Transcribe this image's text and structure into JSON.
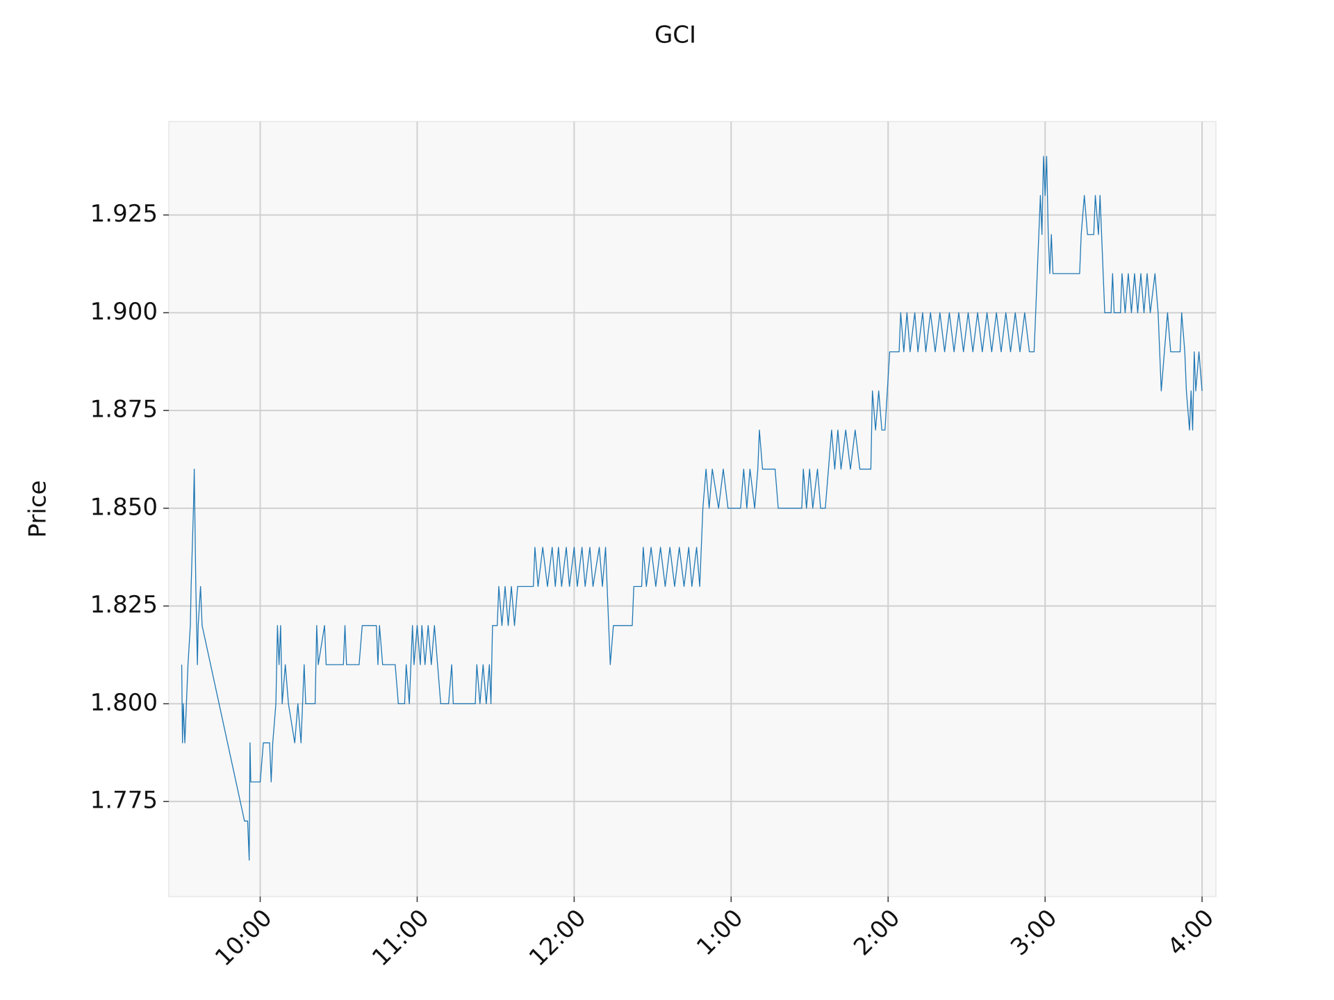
{
  "chart_data": {
    "type": "line",
    "title": "GCI",
    "y_label": "Price",
    "x": [
      9.5,
      9.505,
      9.51,
      9.52,
      9.54,
      9.555,
      9.56,
      9.575,
      9.58,
      9.59,
      9.6,
      9.605,
      9.62,
      9.63,
      9.9,
      9.92,
      9.93,
      9.935,
      9.94,
      10,
      10.02,
      10.06,
      10.07,
      10.08,
      10.1,
      10.11,
      10.12,
      10.13,
      10.14,
      10.16,
      10.18,
      10.22,
      10.24,
      10.26,
      10.28,
      10.29,
      10.35,
      10.36,
      10.37,
      10.41,
      10.42,
      10.53,
      10.54,
      10.55,
      10.63,
      10.65,
      10.74,
      10.75,
      10.76,
      10.78,
      10.86,
      10.88,
      10.92,
      10.93,
      10.95,
      10.97,
      10.98,
      11,
      11.02,
      11.03,
      11.05,
      11.07,
      11.09,
      11.11,
      11.13,
      11.15,
      11.2,
      11.22,
      11.23,
      11.37,
      11.38,
      11.4,
      11.42,
      11.44,
      11.46,
      11.47,
      11.48,
      11.51,
      11.52,
      11.54,
      11.56,
      11.58,
      11.6,
      11.62,
      11.64,
      11.74,
      11.75,
      11.77,
      11.8,
      11.83,
      11.86,
      11.88,
      11.9,
      11.92,
      11.95,
      11.97,
      12,
      12.02,
      12.05,
      12.07,
      12.1,
      12.12,
      12.16,
      12.18,
      12.2,
      12.21,
      12.23,
      12.25,
      12.37,
      12.38,
      12.43,
      12.44,
      12.46,
      12.49,
      12.52,
      12.55,
      12.58,
      12.61,
      12.64,
      12.67,
      12.7,
      12.73,
      12.75,
      12.78,
      12.8,
      12.82,
      12.84,
      12.86,
      12.88,
      12.92,
      12.95,
      12.98,
      13.06,
      13.08,
      13.1,
      13.12,
      13.15,
      13.17,
      13.18,
      13.2,
      13.28,
      13.3,
      13.45,
      13.46,
      13.48,
      13.5,
      13.52,
      13.55,
      13.57,
      13.6,
      13.62,
      13.64,
      13.66,
      13.68,
      13.7,
      13.73,
      13.76,
      13.79,
      13.82,
      13.89,
      13.9,
      13.92,
      13.94,
      13.96,
      13.98,
      14.01,
      14.07,
      14.08,
      14.1,
      14.12,
      14.14,
      14.17,
      14.19,
      14.22,
      14.24,
      14.27,
      14.3,
      14.33,
      14.36,
      14.39,
      14.42,
      14.45,
      14.48,
      14.51,
      14.54,
      14.57,
      14.6,
      14.63,
      14.66,
      14.69,
      14.72,
      14.75,
      14.78,
      14.81,
      14.84,
      14.87,
      14.9,
      14.93,
      14.94,
      14.95,
      14.97,
      14.98,
      14.99,
      15,
      15.01,
      15.02,
      15.03,
      15.04,
      15.05,
      15.22,
      15.23,
      15.25,
      15.27,
      15.31,
      15.32,
      15.34,
      15.35,
      15.37,
      15.38,
      15.42,
      15.43,
      15.44,
      15.48,
      15.49,
      15.51,
      15.53,
      15.55,
      15.57,
      15.59,
      15.61,
      15.63,
      15.65,
      15.67,
      15.7,
      15.72,
      15.74,
      15.76,
      15.78,
      15.8,
      15.86,
      15.87,
      15.89,
      15.9,
      15.92,
      15.93,
      15.94,
      15.95,
      15.96,
      15.98,
      16
    ],
    "series": [
      {
        "color": "#1f77b4",
        "values": [
          1.81,
          1.79,
          1.8,
          1.79,
          1.81,
          1.82,
          1.83,
          1.85,
          1.86,
          1.83,
          1.81,
          1.82,
          1.83,
          1.82,
          1.77,
          1.77,
          1.76,
          1.79,
          1.78,
          1.78,
          1.79,
          1.79,
          1.78,
          1.79,
          1.8,
          1.82,
          1.81,
          1.82,
          1.8,
          1.81,
          1.8,
          1.79,
          1.8,
          1.79,
          1.81,
          1.8,
          1.8,
          1.82,
          1.81,
          1.82,
          1.81,
          1.81,
          1.82,
          1.81,
          1.81,
          1.82,
          1.82,
          1.81,
          1.82,
          1.81,
          1.81,
          1.8,
          1.8,
          1.81,
          1.8,
          1.82,
          1.81,
          1.82,
          1.81,
          1.82,
          1.81,
          1.82,
          1.81,
          1.82,
          1.81,
          1.8,
          1.8,
          1.81,
          1.8,
          1.8,
          1.81,
          1.8,
          1.81,
          1.8,
          1.81,
          1.8,
          1.82,
          1.82,
          1.83,
          1.82,
          1.83,
          1.82,
          1.83,
          1.82,
          1.83,
          1.83,
          1.84,
          1.83,
          1.84,
          1.83,
          1.84,
          1.83,
          1.84,
          1.83,
          1.84,
          1.83,
          1.84,
          1.83,
          1.84,
          1.83,
          1.84,
          1.83,
          1.84,
          1.83,
          1.84,
          1.83,
          1.81,
          1.82,
          1.82,
          1.83,
          1.83,
          1.84,
          1.83,
          1.84,
          1.83,
          1.84,
          1.83,
          1.84,
          1.83,
          1.84,
          1.83,
          1.84,
          1.83,
          1.84,
          1.83,
          1.85,
          1.86,
          1.85,
          1.86,
          1.85,
          1.86,
          1.85,
          1.85,
          1.86,
          1.85,
          1.86,
          1.85,
          1.86,
          1.87,
          1.86,
          1.86,
          1.85,
          1.85,
          1.86,
          1.85,
          1.86,
          1.85,
          1.86,
          1.85,
          1.85,
          1.86,
          1.87,
          1.86,
          1.87,
          1.86,
          1.87,
          1.86,
          1.87,
          1.86,
          1.86,
          1.88,
          1.87,
          1.88,
          1.87,
          1.87,
          1.89,
          1.89,
          1.9,
          1.89,
          1.9,
          1.89,
          1.9,
          1.89,
          1.9,
          1.89,
          1.9,
          1.89,
          1.9,
          1.89,
          1.9,
          1.89,
          1.9,
          1.89,
          1.9,
          1.89,
          1.9,
          1.89,
          1.9,
          1.89,
          1.9,
          1.89,
          1.9,
          1.89,
          1.9,
          1.89,
          1.9,
          1.89,
          1.89,
          1.9,
          1.91,
          1.93,
          1.92,
          1.94,
          1.93,
          1.94,
          1.92,
          1.91,
          1.92,
          1.91,
          1.91,
          1.92,
          1.93,
          1.92,
          1.92,
          1.93,
          1.92,
          1.93,
          1.91,
          1.9,
          1.9,
          1.91,
          1.9,
          1.9,
          1.91,
          1.9,
          1.91,
          1.9,
          1.91,
          1.9,
          1.91,
          1.9,
          1.91,
          1.9,
          1.91,
          1.9,
          1.88,
          1.89,
          1.9,
          1.89,
          1.89,
          1.9,
          1.89,
          1.88,
          1.87,
          1.88,
          1.87,
          1.89,
          1.88,
          1.89,
          1.88
        ]
      }
    ],
    "xlim": [
      9.418,
      16.088
    ],
    "xticks": [
      {
        "value": 10,
        "label": "10:00"
      },
      {
        "value": 11,
        "label": "11:00"
      },
      {
        "value": 12,
        "label": "12:00"
      },
      {
        "value": 13,
        "label": "1:00"
      },
      {
        "value": 14,
        "label": "2:00"
      },
      {
        "value": 15,
        "label": "3:00"
      },
      {
        "value": 16,
        "label": "4:00"
      }
    ],
    "ylim": [
      1.7507,
      1.9489
    ],
    "yticks": [
      1.775,
      {
        "value": 1.8,
        "label": "1.800"
      },
      1.825,
      {
        "value": 1.85,
        "label": "1.850"
      },
      1.875,
      {
        "value": 1.9,
        "label": "1.900"
      },
      1.925
    ],
    "grid": true
  }
}
